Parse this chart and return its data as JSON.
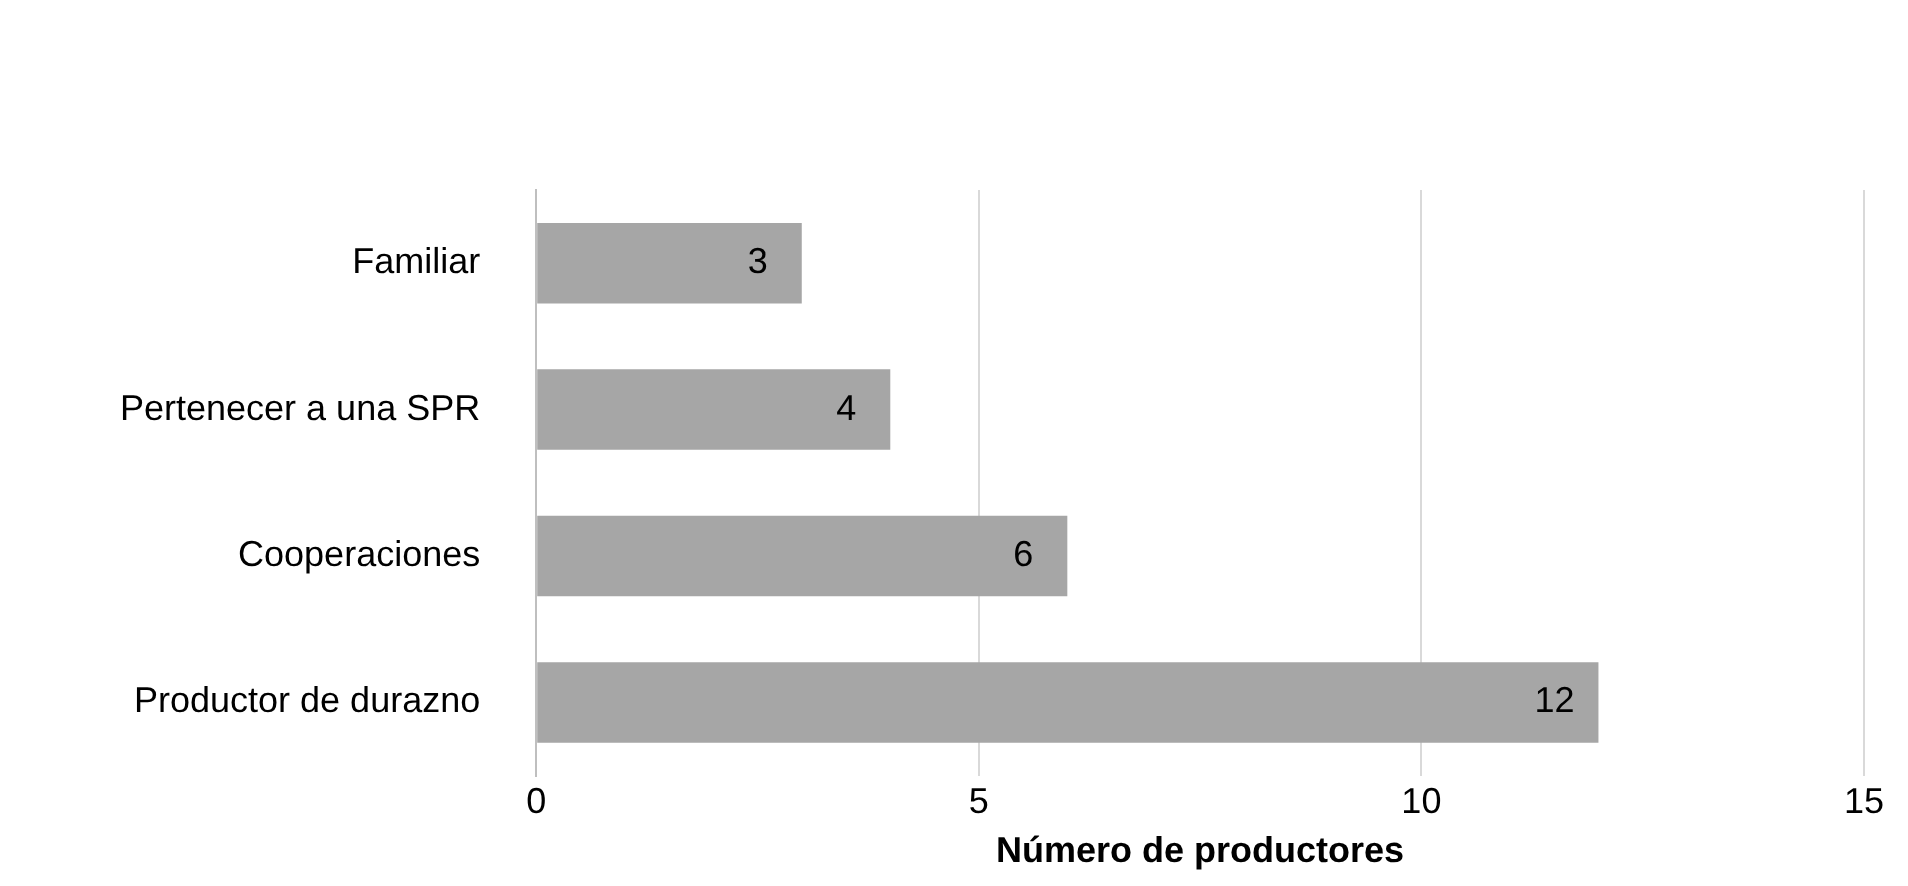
{
  "chart_data": {
    "type": "bar",
    "orientation": "horizontal",
    "categories": [
      "Familiar",
      "Pertenecer a una SPR",
      "Cooperaciones",
      "Productor de durazno"
    ],
    "values": [
      3,
      4,
      6,
      12
    ],
    "color": "#a6a6a6",
    "xlabel": "Número de productores",
    "xlim": [
      0,
      15
    ],
    "xticks": [
      0,
      5,
      10,
      15
    ],
    "grid": "x",
    "data_labels": true,
    "legend": false
  }
}
